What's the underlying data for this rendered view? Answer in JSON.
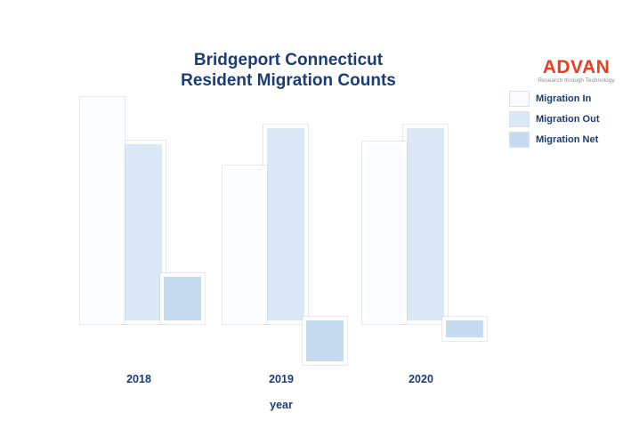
{
  "title": {
    "line1": "Bridgeport Connecticut",
    "line2": "Resident Migration Counts"
  },
  "logo": {
    "name": "ADVAN",
    "tagline": "Research through Technology",
    "text_color": "#e8401f"
  },
  "legend": {
    "position": "right",
    "items": [
      {
        "label": "Migration In",
        "color": "#fafcff"
      },
      {
        "label": "Migration Out",
        "color": "#dbe8f6"
      },
      {
        "label": "Migration Net",
        "color": "#c6dbf0"
      }
    ]
  },
  "x_axis": {
    "label": "year",
    "ticks": [
      "2018",
      "2019",
      "2020"
    ]
  },
  "colors": {
    "text_navy": "#1b3c74",
    "background": "#ffffff"
  },
  "chart_data": {
    "type": "bar",
    "title": "Bridgeport Connecticut Resident Migration Counts",
    "xlabel": "year",
    "ylabel": "",
    "categories": [
      "2018",
      "2019",
      "2020"
    ],
    "series": [
      {
        "name": "Migration In",
        "color": "#fafcff",
        "values": [
          247,
          170,
          197
        ]
      },
      {
        "name": "Migration Out",
        "color": "#dbe8f6",
        "values": [
          198,
          216,
          216
        ]
      },
      {
        "name": "Migration Net",
        "color": "#c6dbf0",
        "values": [
          49,
          -46,
          -19
        ]
      }
    ],
    "value_units": "relative estimate (no y-axis scale shown in image)",
    "ylim": [
      -60,
      260
    ],
    "grid": false,
    "legend_position": "right",
    "notes": "Net = In - Out; net is positive in 2018 and negative in 2019 and 2020"
  }
}
